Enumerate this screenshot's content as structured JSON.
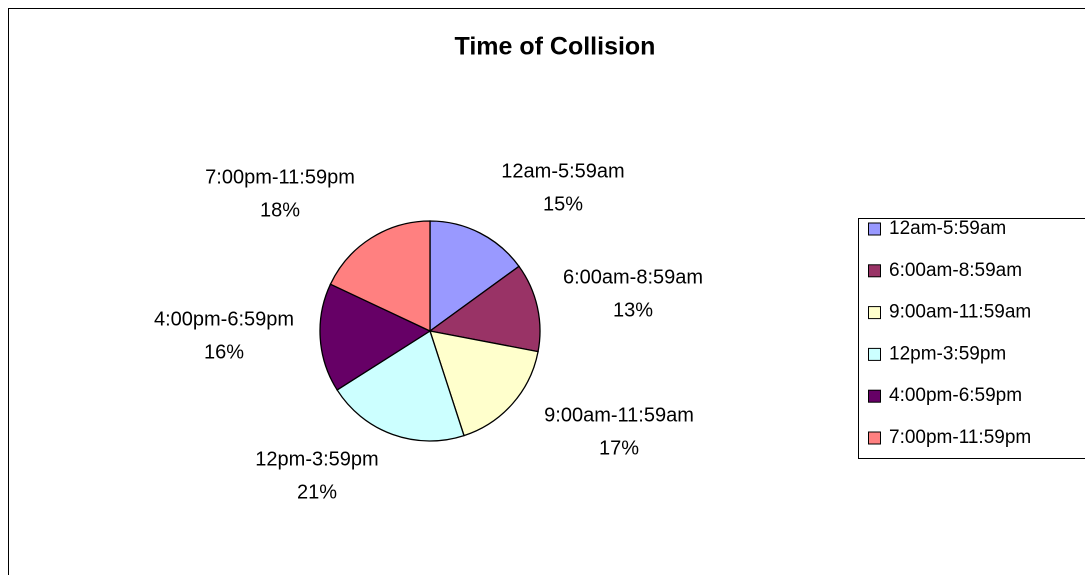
{
  "chart_data": {
    "type": "pie",
    "title": "Time of Collision",
    "categories": [
      "12am-5:59am",
      "6:00am-8:59am",
      "9:00am-11:59am",
      "12pm-3:59pm",
      "4:00pm-6:59pm",
      "7:00pm-11:59pm"
    ],
    "values": [
      15,
      13,
      17,
      21,
      16,
      18
    ],
    "value_labels": [
      "15%",
      "13%",
      "17%",
      "21%",
      "16%",
      "18%"
    ],
    "colors": [
      "#9999ff",
      "#993366",
      "#ffffcc",
      "#ccffff",
      "#660066",
      "#ff8080"
    ],
    "legend": "right"
  }
}
